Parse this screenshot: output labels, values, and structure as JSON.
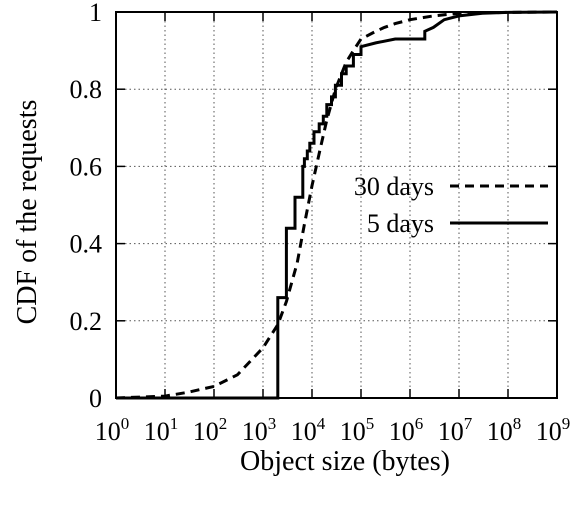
{
  "chart_data": {
    "type": "line",
    "title": "",
    "xlabel": "Object size (bytes)",
    "ylabel": "CDF of the requests",
    "x_scale": "log10",
    "xlim": [
      1,
      1000000000
    ],
    "ylim": [
      0,
      1
    ],
    "x_ticks": [
      {
        "base": "10",
        "exp": "0"
      },
      {
        "base": "10",
        "exp": "1"
      },
      {
        "base": "10",
        "exp": "2"
      },
      {
        "base": "10",
        "exp": "3"
      },
      {
        "base": "10",
        "exp": "4"
      },
      {
        "base": "10",
        "exp": "5"
      },
      {
        "base": "10",
        "exp": "6"
      },
      {
        "base": "10",
        "exp": "7"
      },
      {
        "base": "10",
        "exp": "8"
      },
      {
        "base": "10",
        "exp": "9"
      }
    ],
    "y_ticks": [
      "0",
      "0.2",
      "0.4",
      "0.6",
      "0.8",
      "1"
    ],
    "grid": true,
    "legend_position": "right-middle",
    "series": [
      {
        "name": "30 days",
        "style": "dashed",
        "x": [
          1,
          10,
          30,
          100,
          300,
          1000,
          2000,
          3000,
          5000,
          7000,
          10000,
          15000,
          20000,
          30000,
          50000,
          70000,
          100000,
          200000,
          300000,
          500000,
          1000000,
          3000000,
          10000000,
          100000000,
          1000000000
        ],
        "y": [
          0,
          0.005,
          0.015,
          0.03,
          0.06,
          0.13,
          0.19,
          0.25,
          0.35,
          0.45,
          0.55,
          0.65,
          0.72,
          0.8,
          0.87,
          0.9,
          0.93,
          0.95,
          0.96,
          0.97,
          0.98,
          0.99,
          0.997,
          0.999,
          1
        ]
      },
      {
        "name": "5 days",
        "style": "solid",
        "x": [
          1,
          2000,
          2000,
          3000,
          3000,
          4500,
          4500,
          6500,
          6500,
          7000,
          7000,
          8000,
          8000,
          9000,
          9000,
          11000,
          11000,
          14000,
          14000,
          17000,
          17000,
          20000,
          20000,
          25000,
          25000,
          30000,
          30000,
          40000,
          40000,
          50000,
          50000,
          70000,
          70000,
          100000,
          100000,
          200000,
          500000,
          1000000,
          2000000,
          2000000,
          3000000,
          5000000,
          10000000,
          30000000,
          100000000,
          1000000000
        ],
        "y": [
          0,
          0,
          0.26,
          0.26,
          0.44,
          0.44,
          0.52,
          0.52,
          0.6,
          0.6,
          0.62,
          0.62,
          0.64,
          0.64,
          0.66,
          0.66,
          0.69,
          0.69,
          0.71,
          0.71,
          0.73,
          0.73,
          0.76,
          0.76,
          0.78,
          0.78,
          0.81,
          0.81,
          0.84,
          0.84,
          0.86,
          0.86,
          0.89,
          0.89,
          0.91,
          0.92,
          0.93,
          0.93,
          0.93,
          0.95,
          0.96,
          0.98,
          0.99,
          0.997,
          0.999,
          1
        ]
      }
    ]
  }
}
